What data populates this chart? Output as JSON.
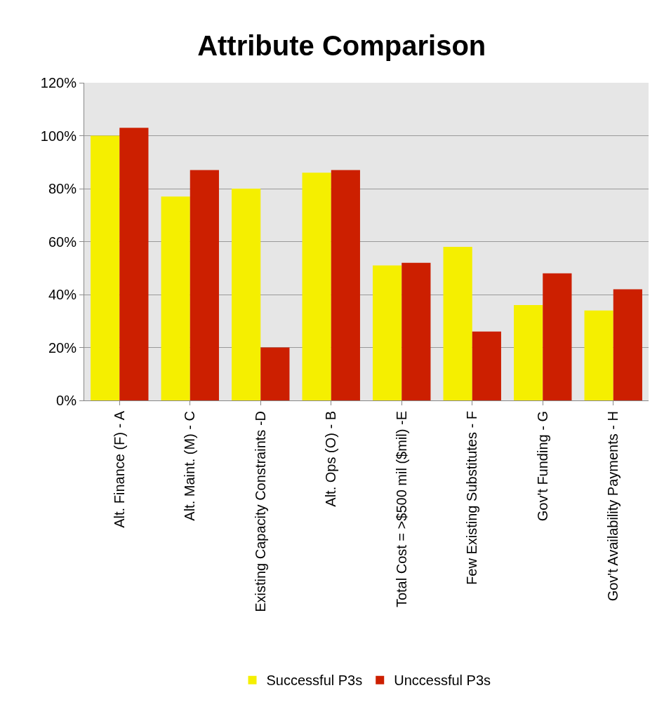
{
  "chart_data": {
    "type": "bar",
    "title": "Attribute Comparison",
    "categories": [
      "Alt. Finance (F) - A",
      "Alt. Maint. (M) - C",
      "Existing Capacity Constraints -D",
      "Alt. Ops (O) - B",
      "Total Cost = >$500 mil ($mil) -E",
      "Few Existing Substitutes - F",
      "Gov't Funding - G",
      "Gov't Availability Payments - H"
    ],
    "series": [
      {
        "name": "Successful P3s",
        "color": "#f5ef00",
        "values": [
          100,
          77,
          80,
          86,
          51,
          58,
          36,
          34
        ]
      },
      {
        "name": "Unccessful P3s",
        "color": "#cc1f00",
        "values": [
          103,
          87,
          20,
          87,
          52,
          26,
          48,
          42
        ]
      }
    ],
    "ylim": [
      0,
      120
    ],
    "yticks": [
      {
        "value": 0,
        "label": "0%"
      },
      {
        "value": 20,
        "label": "20%"
      },
      {
        "value": 40,
        "label": "40%"
      },
      {
        "value": 60,
        "label": "60%"
      },
      {
        "value": 80,
        "label": "80%"
      },
      {
        "value": 100,
        "label": "100%"
      },
      {
        "value": 120,
        "label": "120%"
      }
    ],
    "grid": "y",
    "legend": "bottom"
  }
}
